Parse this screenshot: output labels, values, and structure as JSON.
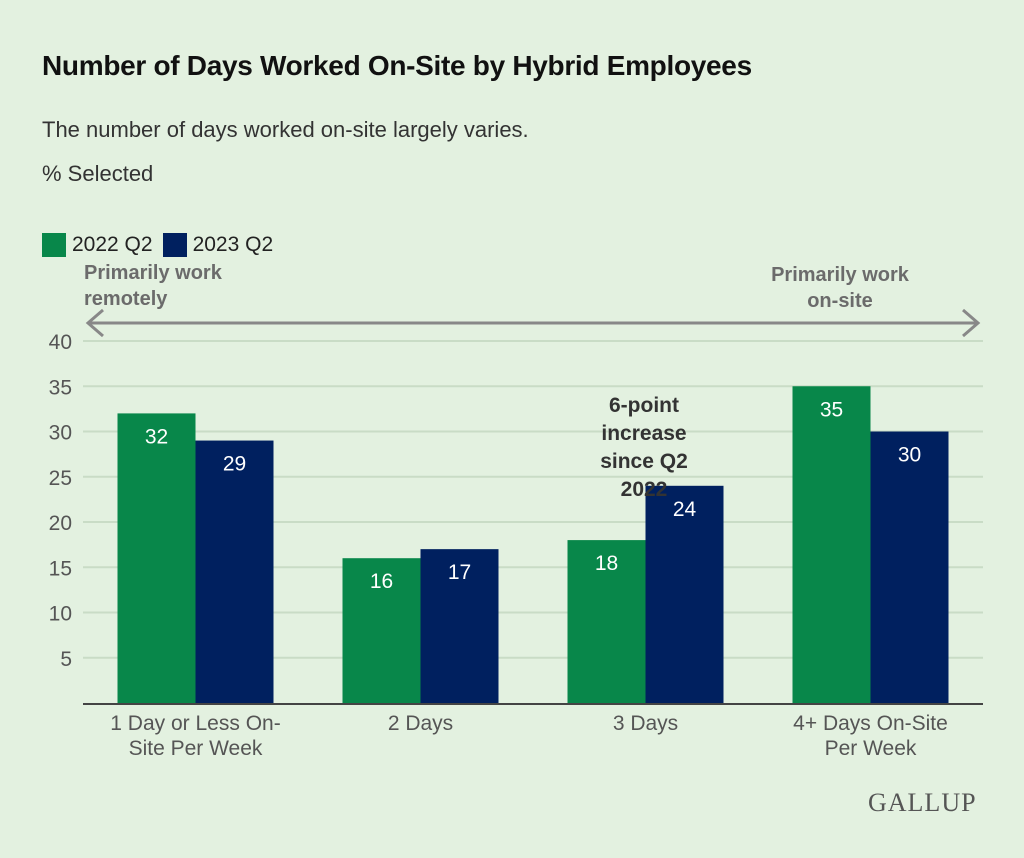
{
  "chart_data": {
    "type": "bar",
    "title": "Number of Days Worked On-Site by Hybrid Employees",
    "subtitle": "The number of days worked on-site largely varies.",
    "ylabel": "% Selected",
    "xlabel": "",
    "ylim": [
      0,
      40
    ],
    "yticks": [
      5,
      10,
      15,
      20,
      25,
      30,
      35,
      40
    ],
    "grid": true,
    "legend_position": "top-left",
    "categories": [
      [
        "1 Day or Less On-",
        "Site Per Week"
      ],
      [
        "2 Days"
      ],
      [
        "3 Days"
      ],
      [
        "4+ Days On-Site",
        "Per Week"
      ]
    ],
    "series": [
      {
        "name": "2022 Q2",
        "color": "#08874a",
        "values": [
          32,
          16,
          18,
          35
        ]
      },
      {
        "name": "2023 Q2",
        "color": "#00205f",
        "values": [
          29,
          17,
          24,
          30
        ]
      }
    ],
    "annotations": {
      "left_arrow_label": [
        "Primarily work",
        "remotely"
      ],
      "right_arrow_label": [
        "Primarily work",
        "on-site"
      ],
      "callout": [
        "6-point",
        "increase",
        "since Q2",
        "2022"
      ]
    }
  },
  "branding": {
    "logo": "GALLUP"
  }
}
